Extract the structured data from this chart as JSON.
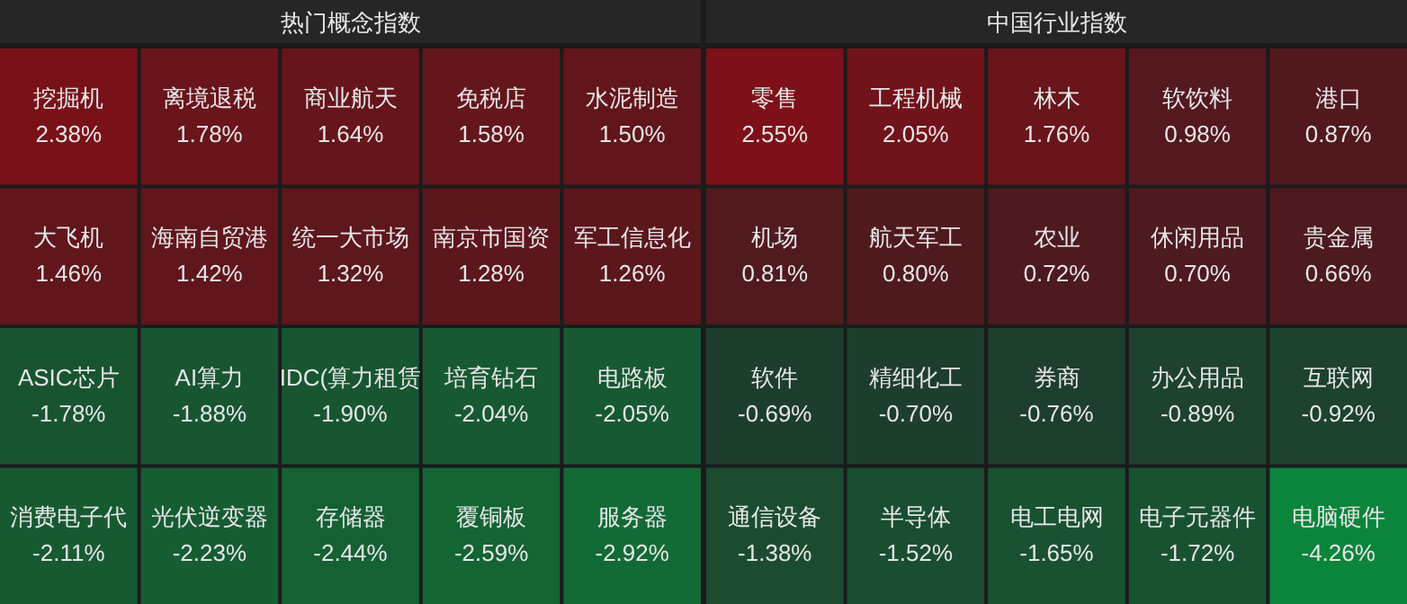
{
  "chart_data": [
    {
      "type": "other",
      "title": "热门概念指数",
      "categories": [
        "挖掘机",
        "离境退税",
        "商业航天",
        "免税店",
        "水泥制造",
        "大飞机",
        "海南自贸港",
        "统一大市场",
        "南京市国资",
        "军工信息化",
        "ASIC芯片",
        "AI算力",
        "IDC(算力租赁",
        "培育钻石",
        "电路板",
        "消费电子代",
        "光伏逆变器",
        "存储器",
        "覆铜板",
        "服务器"
      ],
      "values": [
        2.38,
        1.78,
        1.64,
        1.58,
        1.5,
        1.46,
        1.42,
        1.32,
        1.28,
        1.26,
        -1.78,
        -1.88,
        -1.9,
        -2.04,
        -2.05,
        -2.11,
        -2.23,
        -2.44,
        -2.59,
        -2.92
      ],
      "value_labels": [
        "2.38%",
        "1.78%",
        "1.64%",
        "1.58%",
        "1.50%",
        "1.46%",
        "1.42%",
        "1.32%",
        "1.28%",
        "1.26%",
        "-1.78%",
        "-1.88%",
        "-1.90%",
        "-2.04%",
        "-2.05%",
        "-2.11%",
        "-2.23%",
        "-2.44%",
        "-2.59%",
        "-2.92%"
      ]
    },
    {
      "type": "other",
      "title": "中国行业指数",
      "categories": [
        "零售",
        "工程机械",
        "林木",
        "软饮料",
        "港口",
        "机场",
        "航天军工",
        "农业",
        "休闲用品",
        "贵金属",
        "软件",
        "精细化工",
        "券商",
        "办公用品",
        "互联网",
        "通信设备",
        "半导体",
        "电工电网",
        "电子元器件",
        "电脑硬件"
      ],
      "values": [
        2.55,
        2.05,
        1.76,
        0.98,
        0.87,
        0.81,
        0.8,
        0.72,
        0.7,
        0.66,
        -0.69,
        -0.7,
        -0.76,
        -0.89,
        -0.92,
        -1.38,
        -1.52,
        -1.65,
        -1.72,
        -4.26
      ],
      "value_labels": [
        "2.55%",
        "2.05%",
        "1.76%",
        "0.98%",
        "0.87%",
        "0.81%",
        "0.80%",
        "0.72%",
        "0.70%",
        "0.66%",
        "-0.69%",
        "-0.70%",
        "-0.76%",
        "-0.89%",
        "-0.92%",
        "-1.38%",
        "-1.52%",
        "-1.65%",
        "-1.72%",
        "-4.26%"
      ]
    }
  ]
}
